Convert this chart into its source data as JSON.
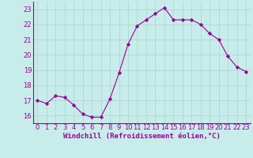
{
  "x": [
    0,
    1,
    2,
    3,
    4,
    5,
    6,
    7,
    8,
    9,
    10,
    11,
    12,
    13,
    14,
    15,
    16,
    17,
    18,
    19,
    20,
    21,
    22,
    23
  ],
  "y": [
    17.0,
    16.8,
    17.3,
    17.2,
    16.7,
    16.1,
    15.9,
    15.9,
    17.1,
    18.8,
    20.7,
    21.9,
    22.3,
    22.7,
    23.1,
    22.3,
    22.3,
    22.3,
    22.0,
    21.4,
    21.0,
    19.9,
    19.2,
    18.9
  ],
  "line_color": "#990099",
  "marker": "D",
  "marker_size": 2.2,
  "bg_color": "#c8ecea",
  "grid_color": "#a8d4d0",
  "xlabel": "Windchill (Refroidissement éolien,°C)",
  "xlabel_color": "#990099",
  "tick_color": "#990099",
  "ylim": [
    15.5,
    23.5
  ],
  "xlim": [
    -0.5,
    23.5
  ],
  "yticks": [
    16,
    17,
    18,
    19,
    20,
    21,
    22,
    23
  ],
  "xticks": [
    0,
    1,
    2,
    3,
    4,
    5,
    6,
    7,
    8,
    9,
    10,
    11,
    12,
    13,
    14,
    15,
    16,
    17,
    18,
    19,
    20,
    21,
    22,
    23
  ],
  "label_fontsize": 6.5,
  "tick_fontsize": 6.0,
  "linewidth": 0.8
}
